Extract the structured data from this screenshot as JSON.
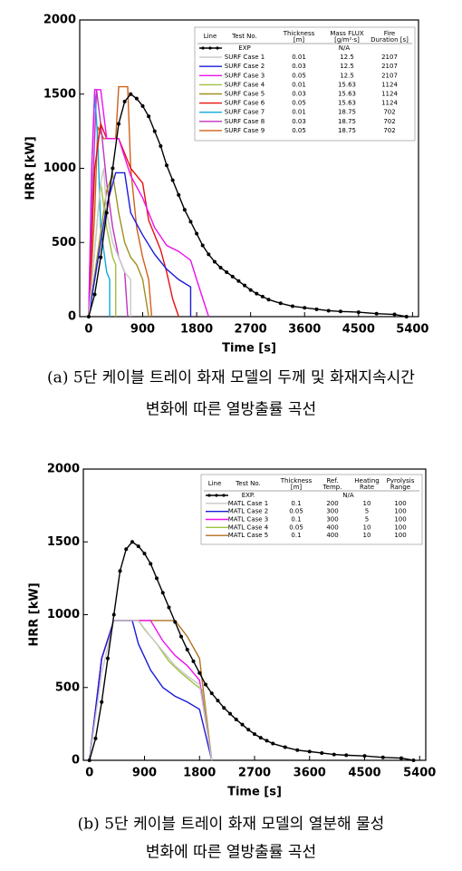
{
  "chart_data": [
    {
      "type": "line",
      "xlabel": "Time [s]",
      "ylabel": "HRR [kW]",
      "caption": [
        "(a) 5단 케이블 트레이 화재 모델의 두께 및 화재지속시간",
        "변화에 따른 열방출률 곡선"
      ],
      "xlim": [
        -150,
        5500
      ],
      "xticks": [
        0,
        900,
        1800,
        2700,
        3600,
        4500,
        5400
      ],
      "ylim": [
        0,
        2000
      ],
      "yticks": [
        0,
        500,
        1000,
        1500,
        2000
      ],
      "legend_header": [
        [
          "Line"
        ],
        [
          "Test No."
        ],
        [
          "Thickness",
          "[m]"
        ],
        [
          "Mass FLUX",
          "[g/m²·s]"
        ],
        [
          "Fire",
          "Duration [s]"
        ]
      ],
      "series": [
        {
          "name": "EXP",
          "color": "#000000",
          "markers": true,
          "params": [
            "N/A"
          ],
          "x": [
            0,
            100,
            200,
            300,
            400,
            500,
            600,
            700,
            800,
            900,
            1000,
            1100,
            1200,
            1300,
            1400,
            1500,
            1600,
            1700,
            1800,
            1900,
            2000,
            2100,
            2200,
            2300,
            2400,
            2500,
            2600,
            2700,
            2800,
            2900,
            3000,
            3200,
            3400,
            3600,
            3800,
            4000,
            4200,
            4500,
            4800,
            5100,
            5300
          ],
          "values": [
            0,
            150,
            400,
            700,
            1000,
            1300,
            1450,
            1500,
            1470,
            1420,
            1350,
            1250,
            1150,
            1020,
            920,
            820,
            720,
            640,
            560,
            480,
            420,
            370,
            330,
            300,
            270,
            240,
            210,
            180,
            155,
            135,
            115,
            90,
            70,
            60,
            50,
            40,
            35,
            30,
            20,
            15,
            0
          ]
        },
        {
          "name": "SURF Case 1",
          "color": "#c8c8c8",
          "params": [
            "0.01",
            "12.5",
            "2107"
          ],
          "x": [
            0,
            200,
            250,
            300,
            400,
            500,
            600,
            700,
            700
          ],
          "values": [
            0,
            900,
            1000,
            700,
            500,
            400,
            300,
            250,
            0
          ]
        },
        {
          "name": "SURF Case 2",
          "color": "#1a1adc",
          "params": [
            "0.03",
            "12.5",
            "2107"
          ],
          "x": [
            0,
            300,
            450,
            600,
            700,
            900,
            1100,
            1300,
            1500,
            1700,
            1700
          ],
          "values": [
            0,
            750,
            970,
            970,
            700,
            550,
            420,
            320,
            250,
            200,
            0
          ]
        },
        {
          "name": "SURF Case 3",
          "color": "#ee10ee",
          "params": [
            "0.05",
            "12.5",
            "2107"
          ],
          "x": [
            0,
            50,
            100,
            200,
            300,
            500,
            700,
            900,
            1100,
            1300,
            1500,
            1700,
            1800,
            2000
          ],
          "values": [
            0,
            1000,
            1530,
            1530,
            1200,
            1200,
            950,
            800,
            600,
            480,
            440,
            380,
            250,
            0
          ]
        },
        {
          "name": "SURF Case 4",
          "color": "#a0c040",
          "params": [
            "0.01",
            "15.63",
            "1124"
          ],
          "x": [
            0,
            200,
            300,
            400,
            450,
            450
          ],
          "values": [
            0,
            900,
            600,
            400,
            350,
            0
          ]
        },
        {
          "name": "SURF Case 5",
          "color": "#a09020",
          "params": [
            "0.03",
            "15.63",
            "1124"
          ],
          "x": [
            0,
            300,
            400,
            500,
            600,
            700,
            800,
            900,
            1000
          ],
          "values": [
            0,
            850,
            960,
            700,
            500,
            400,
            350,
            250,
            0
          ]
        },
        {
          "name": "SURF Case 6",
          "color": "#e81010",
          "params": [
            "0.05",
            "15.63",
            "1124"
          ],
          "x": [
            0,
            100,
            200,
            300,
            500,
            700,
            900,
            1000,
            1100,
            1200,
            1300,
            1400,
            1500
          ],
          "values": [
            0,
            1000,
            1300,
            1200,
            1200,
            1000,
            900,
            650,
            550,
            450,
            300,
            120,
            0
          ]
        },
        {
          "name": "SURF Case 7",
          "color": "#10a8e0",
          "params": [
            "0.01",
            "18.75",
            "702"
          ],
          "x": [
            0,
            50,
            100,
            150,
            200,
            300,
            350,
            350
          ],
          "values": [
            0,
            1000,
            1500,
            1200,
            600,
            300,
            250,
            0
          ]
        },
        {
          "name": "SURF Case 8",
          "color": "#c030c0",
          "params": [
            "0.03",
            "18.75",
            "702"
          ],
          "x": [
            0,
            80,
            130,
            200,
            300,
            400,
            500,
            600,
            650
          ],
          "values": [
            0,
            1000,
            1530,
            1300,
            900,
            600,
            400,
            300,
            0
          ]
        },
        {
          "name": "SURF Case 9",
          "color": "#d06018",
          "params": [
            "0.05",
            "18.75",
            "702"
          ],
          "x": [
            0,
            100,
            150,
            250,
            450,
            500,
            650,
            700,
            800,
            900,
            1000,
            1050
          ],
          "values": [
            0,
            700,
            1280,
            1200,
            1200,
            1550,
            1550,
            1000,
            600,
            400,
            250,
            0
          ]
        }
      ]
    },
    {
      "type": "line",
      "xlabel": "Time [s]",
      "ylabel": "HRR [kW]",
      "caption": [
        "(b) 5단 케이블 트레이 화재 모델의 열분해 물성",
        "변화에 따른 열방출률 곡선"
      ],
      "xlim": [
        -100,
        5500
      ],
      "xticks": [
        0,
        900,
        1800,
        2700,
        3600,
        4500,
        5400
      ],
      "ylim": [
        0,
        2000
      ],
      "yticks": [
        0,
        500,
        1000,
        1500,
        2000
      ],
      "legend_header": [
        [
          "Line"
        ],
        [
          "Test No."
        ],
        [
          "Thickness",
          "[m]"
        ],
        [
          "Ref.",
          "Temp."
        ],
        [
          "Heating",
          "Rate"
        ],
        [
          "Pyrolysis",
          "Range"
        ]
      ],
      "series": [
        {
          "name": "EXP.",
          "color": "#000000",
          "markers": true,
          "params": [
            "N/A"
          ],
          "x": [
            0,
            100,
            200,
            300,
            400,
            500,
            600,
            700,
            800,
            900,
            1000,
            1100,
            1200,
            1300,
            1400,
            1500,
            1600,
            1700,
            1800,
            1900,
            2000,
            2100,
            2200,
            2300,
            2400,
            2500,
            2600,
            2700,
            2800,
            2900,
            3000,
            3200,
            3400,
            3600,
            3800,
            4000,
            4200,
            4500,
            4800,
            5100,
            5300
          ],
          "values": [
            0,
            150,
            400,
            700,
            1000,
            1300,
            1450,
            1500,
            1470,
            1420,
            1350,
            1250,
            1150,
            1050,
            950,
            850,
            760,
            680,
            600,
            520,
            460,
            410,
            360,
            320,
            280,
            245,
            210,
            180,
            155,
            135,
            115,
            90,
            70,
            60,
            50,
            40,
            35,
            30,
            20,
            15,
            0
          ]
        },
        {
          "name": "MATL Case 1",
          "color": "#c8c8c8",
          "params": [
            "0.1",
            "200",
            "10",
            "100"
          ],
          "x": [
            0,
            200,
            400,
            800,
            1000,
            1200,
            1400,
            1600,
            1800,
            2000
          ],
          "values": [
            0,
            600,
            960,
            960,
            850,
            750,
            650,
            580,
            520,
            0
          ]
        },
        {
          "name": "MATL Case 2",
          "color": "#1a1adc",
          "params": [
            "0.05",
            "300",
            "5",
            "100"
          ],
          "x": [
            0,
            200,
            400,
            700,
            800,
            1000,
            1200,
            1400,
            1600,
            1800,
            2000
          ],
          "values": [
            0,
            700,
            960,
            960,
            800,
            620,
            500,
            440,
            400,
            350,
            0
          ]
        },
        {
          "name": "MATL Case 3",
          "color": "#ee10ee",
          "params": [
            "0.1",
            "300",
            "5",
            "100"
          ],
          "x": [
            0,
            200,
            400,
            1000,
            1200,
            1400,
            1600,
            1800,
            2000
          ],
          "values": [
            0,
            700,
            960,
            960,
            820,
            720,
            650,
            550,
            0
          ]
        },
        {
          "name": "MATL Case 4",
          "color": "#a0c040",
          "params": [
            "0.05",
            "400",
            "10",
            "100"
          ],
          "x": [
            0,
            200,
            400,
            800,
            900,
            1100,
            1300,
            1500,
            1700,
            1850,
            2000
          ],
          "values": [
            0,
            700,
            960,
            960,
            900,
            800,
            680,
            600,
            530,
            480,
            0
          ]
        },
        {
          "name": "MATL Case 5",
          "color": "#b07020",
          "params": [
            "0.1",
            "400",
            "10",
            "100"
          ],
          "x": [
            0,
            200,
            400,
            1400,
            1600,
            1800,
            2000
          ],
          "values": [
            0,
            700,
            960,
            960,
            850,
            700,
            0
          ]
        }
      ]
    }
  ]
}
